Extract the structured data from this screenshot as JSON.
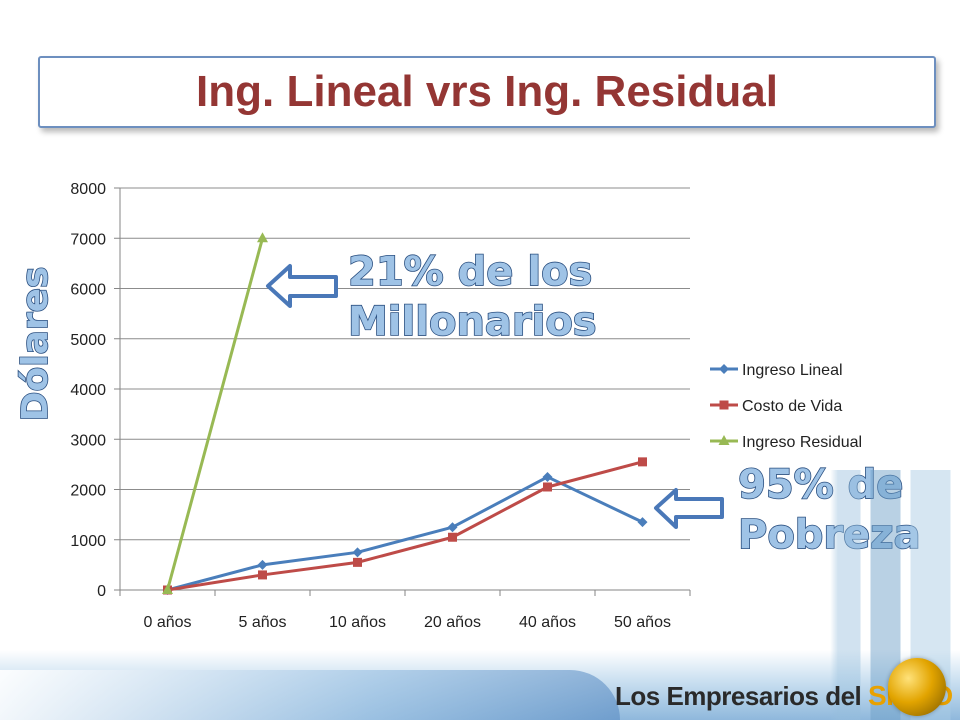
{
  "title": "Ing. Lineal vrs Ing. Residual",
  "chart_data": {
    "type": "line",
    "categories": [
      "0 años",
      "5 años",
      "10 años",
      "20 años",
      "40 años",
      "50 años"
    ],
    "series": [
      {
        "name": "Ingreso Lineal",
        "color": "#4a7ebb",
        "marker": "diamond",
        "values": [
          0,
          500,
          750,
          1250,
          2250,
          1350
        ]
      },
      {
        "name": "Costo de Vida",
        "color": "#be4b48",
        "marker": "square",
        "values": [
          0,
          300,
          550,
          1050,
          2050,
          2550
        ]
      },
      {
        "name": "Ingreso Residual",
        "color": "#98b954",
        "marker": "triangle",
        "values": [
          0,
          7000,
          null,
          null,
          null,
          null
        ]
      }
    ],
    "ylim": [
      0,
      8000
    ],
    "yticks": [
      0,
      1000,
      2000,
      3000,
      4000,
      5000,
      6000,
      7000,
      8000
    ],
    "ylabel": "Dólares",
    "grid": true,
    "legend": "right"
  },
  "annotations": {
    "top_line1": "21% de los",
    "top_line2": "Millonarios",
    "bottom_line1": "95% de",
    "bottom_line2": "Pobreza"
  },
  "logo": {
    "text_main": "Los Empresarios del ",
    "text_accent": "SIGLO XXI"
  }
}
